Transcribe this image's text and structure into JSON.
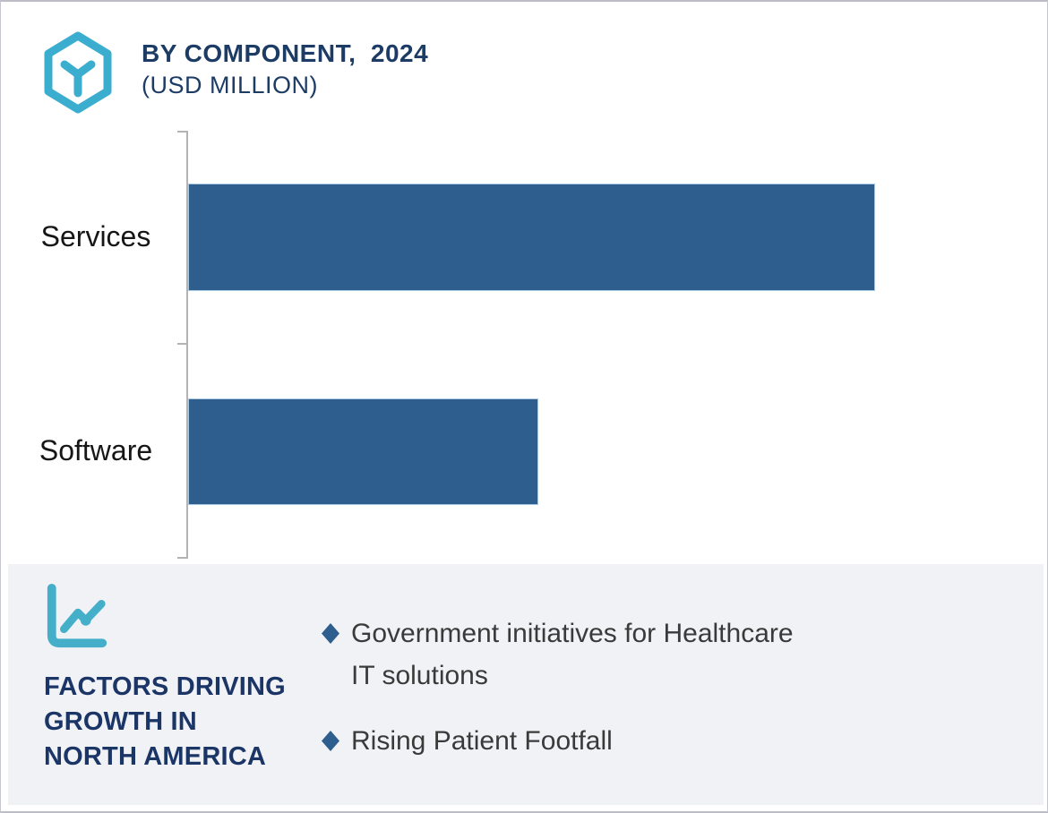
{
  "header": {
    "logo_icon": "hexagon-cube-icon",
    "title": "BY COMPONENT,  2024",
    "subtitle": "(USD MILLION)"
  },
  "chart_data": {
    "type": "bar",
    "orientation": "horizontal",
    "title": "BY COMPONENT,  2024 (USD MILLION)",
    "categories": [
      "Services",
      "Software"
    ],
    "values": [
      100,
      51
    ],
    "value_note": "No numeric axis or data labels are shown; values are relative bar lengths (Software is about 51% of Services).",
    "xlabel": "",
    "ylabel": "",
    "value_axis": "hidden",
    "grid": "off",
    "legend": "none",
    "bar_color": "#2d5e8d",
    "axis_color": "#b3b3b3"
  },
  "panel": {
    "icon": "line-chart-icon",
    "title_lines": [
      "FACTORS DRIVING",
      "GROWTH IN",
      "NORTH AMERICA"
    ],
    "bullets": [
      "Government initiatives for Healthcare IT solutions",
      "Rising Patient Footfall"
    ]
  },
  "colors": {
    "bar_blue": "#2d5e8d",
    "navy_text": "#1c3c66",
    "panel_navy_text": "#1b3566",
    "teal_accent": "#3badcf",
    "panel_background": "#f1f2f6",
    "axis_gray": "#b3b3b3",
    "category_label_text": "#161616",
    "bullet_text": "#3a3a3a"
  }
}
